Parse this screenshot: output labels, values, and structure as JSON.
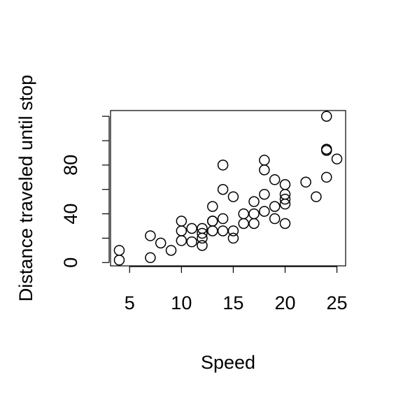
{
  "chart_data": {
    "type": "scatter",
    "x_label": "Speed",
    "y_label": "Distance traveled until stop",
    "x": [
      4,
      4,
      7,
      7,
      8,
      9,
      10,
      10,
      10,
      11,
      11,
      12,
      12,
      12,
      12,
      13,
      13,
      13,
      13,
      14,
      14,
      14,
      14,
      15,
      15,
      15,
      16,
      16,
      17,
      17,
      17,
      18,
      18,
      18,
      18,
      19,
      19,
      19,
      20,
      20,
      20,
      20,
      20,
      22,
      23,
      24,
      24,
      24,
      24,
      25
    ],
    "values": [
      2,
      10,
      4,
      22,
      16,
      10,
      18,
      26,
      34,
      17,
      28,
      14,
      20,
      24,
      28,
      26,
      34,
      34,
      46,
      26,
      36,
      60,
      80,
      20,
      26,
      54,
      32,
      40,
      32,
      40,
      50,
      42,
      56,
      76,
      84,
      36,
      46,
      68,
      32,
      48,
      52,
      56,
      64,
      66,
      54,
      70,
      92,
      93,
      120,
      85
    ],
    "color": "#000000",
    "xlim": [
      3.16,
      25.84
    ],
    "ylim": [
      -2.72,
      124.72
    ],
    "xticks": [
      5,
      10,
      15,
      20,
      25
    ],
    "yticks": [
      0,
      40,
      80
    ],
    "yticks_unlabeled": [
      20,
      60,
      100,
      120
    ]
  }
}
